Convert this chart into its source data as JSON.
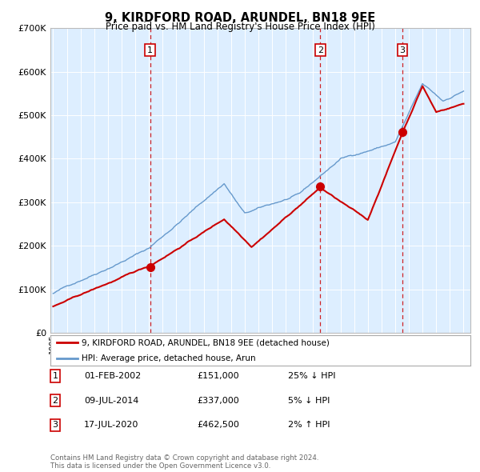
{
  "title": "9, KIRDFORD ROAD, ARUNDEL, BN18 9EE",
  "subtitle": "Price paid vs. HM Land Registry's House Price Index (HPI)",
  "background_color": "#ffffff",
  "plot_bg_color": "#ddeeff",
  "red_line_color": "#cc0000",
  "blue_line_color": "#6699cc",
  "grid_color": "#ffffff",
  "vline_color": "#cc0000",
  "ylim": [
    0,
    700000
  ],
  "yticks": [
    0,
    100000,
    200000,
    300000,
    400000,
    500000,
    600000,
    700000
  ],
  "ytick_labels": [
    "£0",
    "£100K",
    "£200K",
    "£300K",
    "£400K",
    "£500K",
    "£600K",
    "£700K"
  ],
  "sale_years_float": [
    2002.083,
    2014.52,
    2020.54
  ],
  "sale_prices": [
    151000,
    337000,
    462500
  ],
  "sale_labels": [
    "1",
    "2",
    "3"
  ],
  "table_rows": [
    [
      "1",
      "01-FEB-2002",
      "£151,000",
      "25% ↓ HPI"
    ],
    [
      "2",
      "09-JUL-2014",
      "£337,000",
      "5% ↓ HPI"
    ],
    [
      "3",
      "17-JUL-2020",
      "£462,500",
      "2% ↑ HPI"
    ]
  ],
  "legend_entries": [
    "9, KIRDFORD ROAD, ARUNDEL, BN18 9EE (detached house)",
    "HPI: Average price, detached house, Arun"
  ],
  "footer": "Contains HM Land Registry data © Crown copyright and database right 2024.\nThis data is licensed under the Open Government Licence v3.0.",
  "xstart_year": 1995,
  "xend_year": 2025
}
